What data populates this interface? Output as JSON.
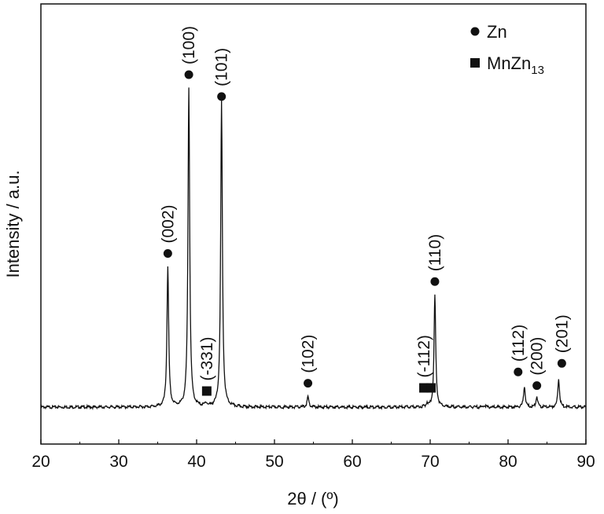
{
  "chart_data": {
    "type": "line",
    "xlabel": "2θ / (º)",
    "ylabel": "Intensity / a.u.",
    "xlim": [
      20,
      90
    ],
    "ylim": [
      0,
      1
    ],
    "xticks": [
      "20",
      "30",
      "40",
      "50",
      "60",
      "70",
      "80",
      "90"
    ],
    "y_ticks_shown": false,
    "grid": false,
    "legend": {
      "placement": "top-right",
      "entries": [
        {
          "marker": "circle",
          "label": "Zn"
        },
        {
          "marker": "square",
          "label": "MnZn",
          "subscript": "13"
        }
      ]
    },
    "baseline": 0.09,
    "peaks": [
      {
        "x": 36.3,
        "y": 0.49,
        "hkl": "(002)",
        "phase": "Zn"
      },
      {
        "x": 39.0,
        "y": 1.0,
        "hkl": "(100)",
        "phase": "Zn"
      },
      {
        "x": 41.2,
        "y": 0.1,
        "hkl": "(-331)",
        "phase": "MnZn13"
      },
      {
        "x": 43.2,
        "y": 0.96,
        "hkl": "(101)",
        "phase": "Zn"
      },
      {
        "x": 54.3,
        "y": 0.12,
        "hkl": "(102)",
        "phase": "Zn"
      },
      {
        "x": 69.6,
        "y": 0.1,
        "hkl": "(-112)",
        "phase": "MnZn13"
      },
      {
        "x": 70.6,
        "y": 0.41,
        "hkl": "(110)",
        "phase": "Zn"
      },
      {
        "x": 82.1,
        "y": 0.15,
        "hkl": "(112)",
        "phase": "Zn"
      },
      {
        "x": 83.7,
        "y": 0.12,
        "hkl": "(200)",
        "phase": "Zn"
      },
      {
        "x": 86.5,
        "y": 0.17,
        "hkl": "(201)",
        "phase": "Zn"
      }
    ],
    "minor_features": [
      {
        "x": 77.0,
        "y": 0.095
      }
    ]
  }
}
